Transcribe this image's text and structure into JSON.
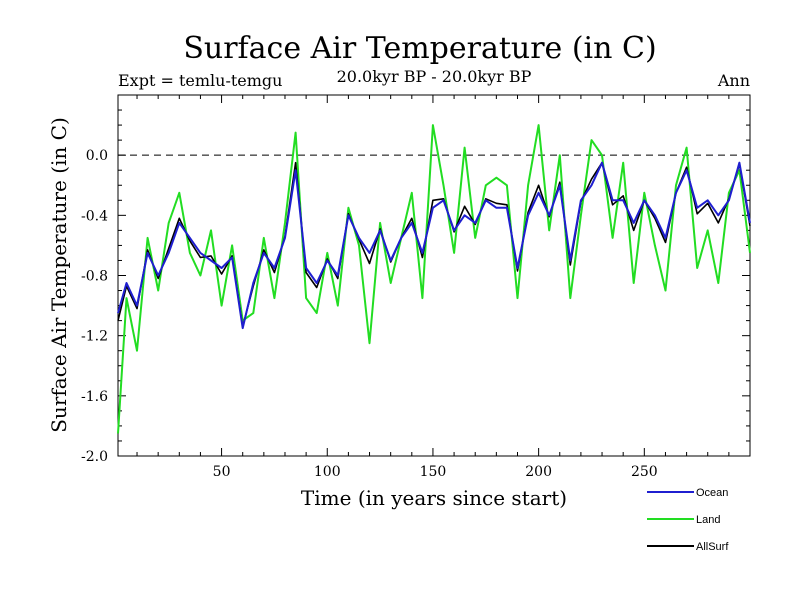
{
  "chart_data": {
    "type": "line",
    "title": "Surface Air Temperature (in C)",
    "subtitle": "20.0kyr BP - 20.0kyr BP",
    "expt_label": "Expt = temlu-temgu",
    "season_label": "Ann",
    "xlabel": "Time (in years since start)",
    "ylabel": "Surface Air Temperature (in C)",
    "xlim": [
      1,
      300
    ],
    "ylim": [
      -2.0,
      0.4
    ],
    "xticks": [
      50,
      100,
      150,
      200,
      250
    ],
    "yticks": [
      -2.0,
      -1.6,
      -1.2,
      -0.8,
      -0.4,
      0.0
    ],
    "ytick_labels": [
      "-2.0",
      "-1.6",
      "-1.2",
      "-0.8",
      "-0.4",
      "0.0"
    ],
    "reference_line": 0.0,
    "legend_position": "bottom-right",
    "series": [
      {
        "name": "Ocean",
        "color": "#1f1fd0",
        "x": [
          1,
          5,
          10,
          15,
          20,
          25,
          30,
          35,
          40,
          45,
          50,
          55,
          60,
          65,
          70,
          75,
          80,
          85,
          90,
          95,
          100,
          105,
          110,
          115,
          120,
          125,
          130,
          135,
          140,
          145,
          150,
          155,
          160,
          165,
          170,
          175,
          180,
          185,
          190,
          195,
          200,
          205,
          210,
          215,
          220,
          225,
          230,
          235,
          240,
          245,
          250,
          255,
          260,
          265,
          270,
          275,
          280,
          285,
          290,
          295,
          300
        ],
        "values": [
          -1.05,
          -0.85,
          -1.0,
          -0.65,
          -0.8,
          -0.65,
          -0.45,
          -0.55,
          -0.65,
          -0.7,
          -0.75,
          -0.68,
          -1.15,
          -0.85,
          -0.65,
          -0.75,
          -0.55,
          -0.1,
          -0.75,
          -0.85,
          -0.7,
          -0.8,
          -0.4,
          -0.55,
          -0.65,
          -0.5,
          -0.7,
          -0.55,
          -0.45,
          -0.65,
          -0.35,
          -0.3,
          -0.5,
          -0.4,
          -0.45,
          -0.3,
          -0.35,
          -0.35,
          -0.75,
          -0.4,
          -0.25,
          -0.4,
          -0.2,
          -0.7,
          -0.3,
          -0.2,
          -0.05,
          -0.3,
          -0.3,
          -0.45,
          -0.3,
          -0.4,
          -0.55,
          -0.25,
          -0.1,
          -0.35,
          -0.3,
          -0.4,
          -0.3,
          -0.05,
          -0.45
        ]
      },
      {
        "name": "Land",
        "color": "#22dd22",
        "x": [
          1,
          5,
          10,
          15,
          20,
          25,
          30,
          35,
          40,
          45,
          50,
          55,
          60,
          65,
          70,
          75,
          80,
          85,
          90,
          95,
          100,
          105,
          110,
          115,
          120,
          125,
          130,
          135,
          140,
          145,
          150,
          155,
          160,
          165,
          170,
          175,
          180,
          185,
          190,
          195,
          200,
          205,
          210,
          215,
          220,
          225,
          230,
          235,
          240,
          245,
          250,
          255,
          260,
          265,
          270,
          275,
          280,
          285,
          290,
          295,
          300
        ],
        "values": [
          -1.85,
          -0.95,
          -1.3,
          -0.55,
          -0.9,
          -0.45,
          -0.25,
          -0.65,
          -0.8,
          -0.5,
          -1.0,
          -0.6,
          -1.1,
          -1.05,
          -0.55,
          -0.95,
          -0.45,
          0.15,
          -0.95,
          -1.05,
          -0.65,
          -1.0,
          -0.35,
          -0.6,
          -1.25,
          -0.45,
          -0.85,
          -0.55,
          -0.25,
          -0.95,
          0.2,
          -0.2,
          -0.65,
          0.05,
          -0.55,
          -0.2,
          -0.15,
          -0.2,
          -0.95,
          -0.2,
          0.2,
          -0.5,
          0.0,
          -0.95,
          -0.4,
          0.1,
          0.0,
          -0.55,
          -0.05,
          -0.85,
          -0.25,
          -0.6,
          -0.9,
          -0.2,
          0.05,
          -0.75,
          -0.5,
          -0.85,
          -0.25,
          -0.1,
          -0.65
        ]
      },
      {
        "name": "AllSurf",
        "color": "#000000",
        "x": [
          1,
          5,
          10,
          15,
          20,
          25,
          30,
          35,
          40,
          45,
          50,
          55,
          60,
          65,
          70,
          75,
          80,
          85,
          90,
          95,
          100,
          105,
          110,
          115,
          120,
          125,
          130,
          135,
          140,
          145,
          150,
          155,
          160,
          165,
          170,
          175,
          180,
          185,
          190,
          195,
          200,
          205,
          210,
          215,
          220,
          225,
          230,
          235,
          240,
          245,
          250,
          255,
          260,
          265,
          270,
          275,
          280,
          285,
          290,
          295,
          300
        ],
        "values": [
          -1.1,
          -0.87,
          -1.02,
          -0.63,
          -0.82,
          -0.62,
          -0.42,
          -0.57,
          -0.68,
          -0.67,
          -0.79,
          -0.67,
          -1.14,
          -0.87,
          -0.63,
          -0.78,
          -0.54,
          -0.05,
          -0.78,
          -0.88,
          -0.69,
          -0.82,
          -0.39,
          -0.56,
          -0.72,
          -0.49,
          -0.71,
          -0.55,
          -0.42,
          -0.68,
          -0.3,
          -0.29,
          -0.51,
          -0.34,
          -0.46,
          -0.29,
          -0.32,
          -0.33,
          -0.77,
          -0.38,
          -0.2,
          -0.41,
          -0.18,
          -0.73,
          -0.31,
          -0.16,
          -0.05,
          -0.33,
          -0.27,
          -0.5,
          -0.3,
          -0.42,
          -0.58,
          -0.25,
          -0.08,
          -0.39,
          -0.32,
          -0.45,
          -0.29,
          -0.06,
          -0.47
        ]
      }
    ]
  }
}
